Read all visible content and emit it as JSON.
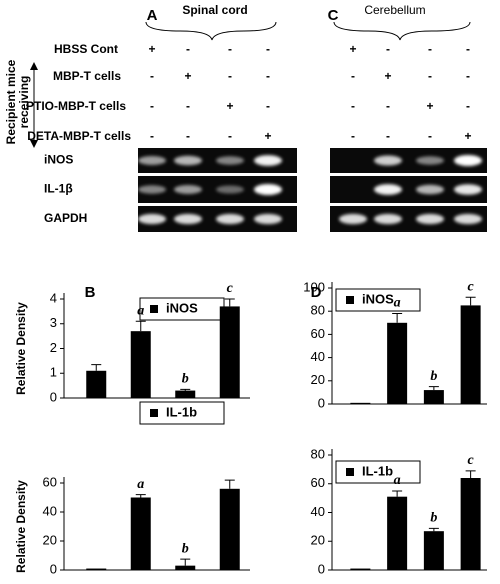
{
  "figure": {
    "side_label": [
      "Recipient mice",
      "receiving"
    ],
    "treatments": [
      "HBSS Cont",
      "MBP-T cells",
      "PTIO-MBP-T cells",
      "DETA-MBP-T cells"
    ],
    "gel_labels": [
      "iNOS",
      "IL-1β",
      "GAPDH"
    ],
    "regions": [
      {
        "panel": "A",
        "label": "Spinal cord",
        "signs": [
          [
            "+",
            "-",
            "-",
            "-"
          ],
          [
            "-",
            "+",
            "-",
            "-"
          ],
          [
            "-",
            "-",
            "+",
            "-"
          ],
          [
            "-",
            "-",
            "-",
            "+"
          ]
        ]
      },
      {
        "panel": "C",
        "label": "Cerebellum",
        "signs": [
          [
            "+",
            "-",
            "-",
            "-"
          ],
          [
            "-",
            "+",
            "-",
            "-"
          ],
          [
            "-",
            "-",
            "+",
            "-"
          ],
          [
            "-",
            "-",
            "-",
            "+"
          ]
        ]
      }
    ]
  },
  "chart_data": [
    {
      "type": "bar",
      "panel_label": "B",
      "ylabel": "Relative Density",
      "categories": [
        null,
        null,
        null,
        null
      ],
      "series": [
        {
          "name": "iNOS",
          "color": "#000000",
          "values": [
            1.1,
            2.7,
            0.3,
            3.7
          ],
          "errors": [
            0.25,
            0.4,
            0.05,
            0.3
          ]
        }
      ],
      "annotations": [
        null,
        "a",
        "b",
        "c"
      ],
      "ylim": [
        0,
        4
      ],
      "yticks": [
        0,
        1,
        2,
        3,
        4
      ]
    },
    {
      "type": "bar",
      "ylabel": "Relative Density",
      "categories": [
        null,
        null,
        null,
        null
      ],
      "series": [
        {
          "name": "IL-1b",
          "color": "#000000",
          "values": [
            1,
            50,
            3,
            56
          ],
          "errors": [
            0,
            2,
            4.5,
            6
          ]
        }
      ],
      "annotations": [
        null,
        "a",
        "b",
        null
      ],
      "ylim": [
        0,
        60
      ],
      "yticks": [
        0,
        20,
        40,
        60
      ]
    },
    {
      "type": "bar",
      "panel_label": "D",
      "categories": [
        null,
        null,
        null,
        null
      ],
      "series": [
        {
          "name": "iNOS",
          "color": "#000000",
          "values": [
            1,
            70,
            12,
            85
          ],
          "errors": [
            0,
            8,
            3,
            7
          ]
        }
      ],
      "annotations": [
        null,
        "a",
        "b",
        "c"
      ],
      "ylim": [
        0,
        100
      ],
      "yticks": [
        0,
        20,
        40,
        60,
        80,
        100
      ]
    },
    {
      "type": "bar",
      "categories": [
        null,
        null,
        null,
        null
      ],
      "series": [
        {
          "name": "IL-1b",
          "color": "#000000",
          "values": [
            1,
            51,
            27,
            64
          ],
          "errors": [
            0,
            4,
            2,
            5
          ]
        }
      ],
      "annotations": [
        null,
        "a",
        "b",
        "c"
      ],
      "ylim": [
        0,
        80
      ],
      "yticks": [
        0,
        20,
        40,
        60,
        80
      ]
    }
  ]
}
